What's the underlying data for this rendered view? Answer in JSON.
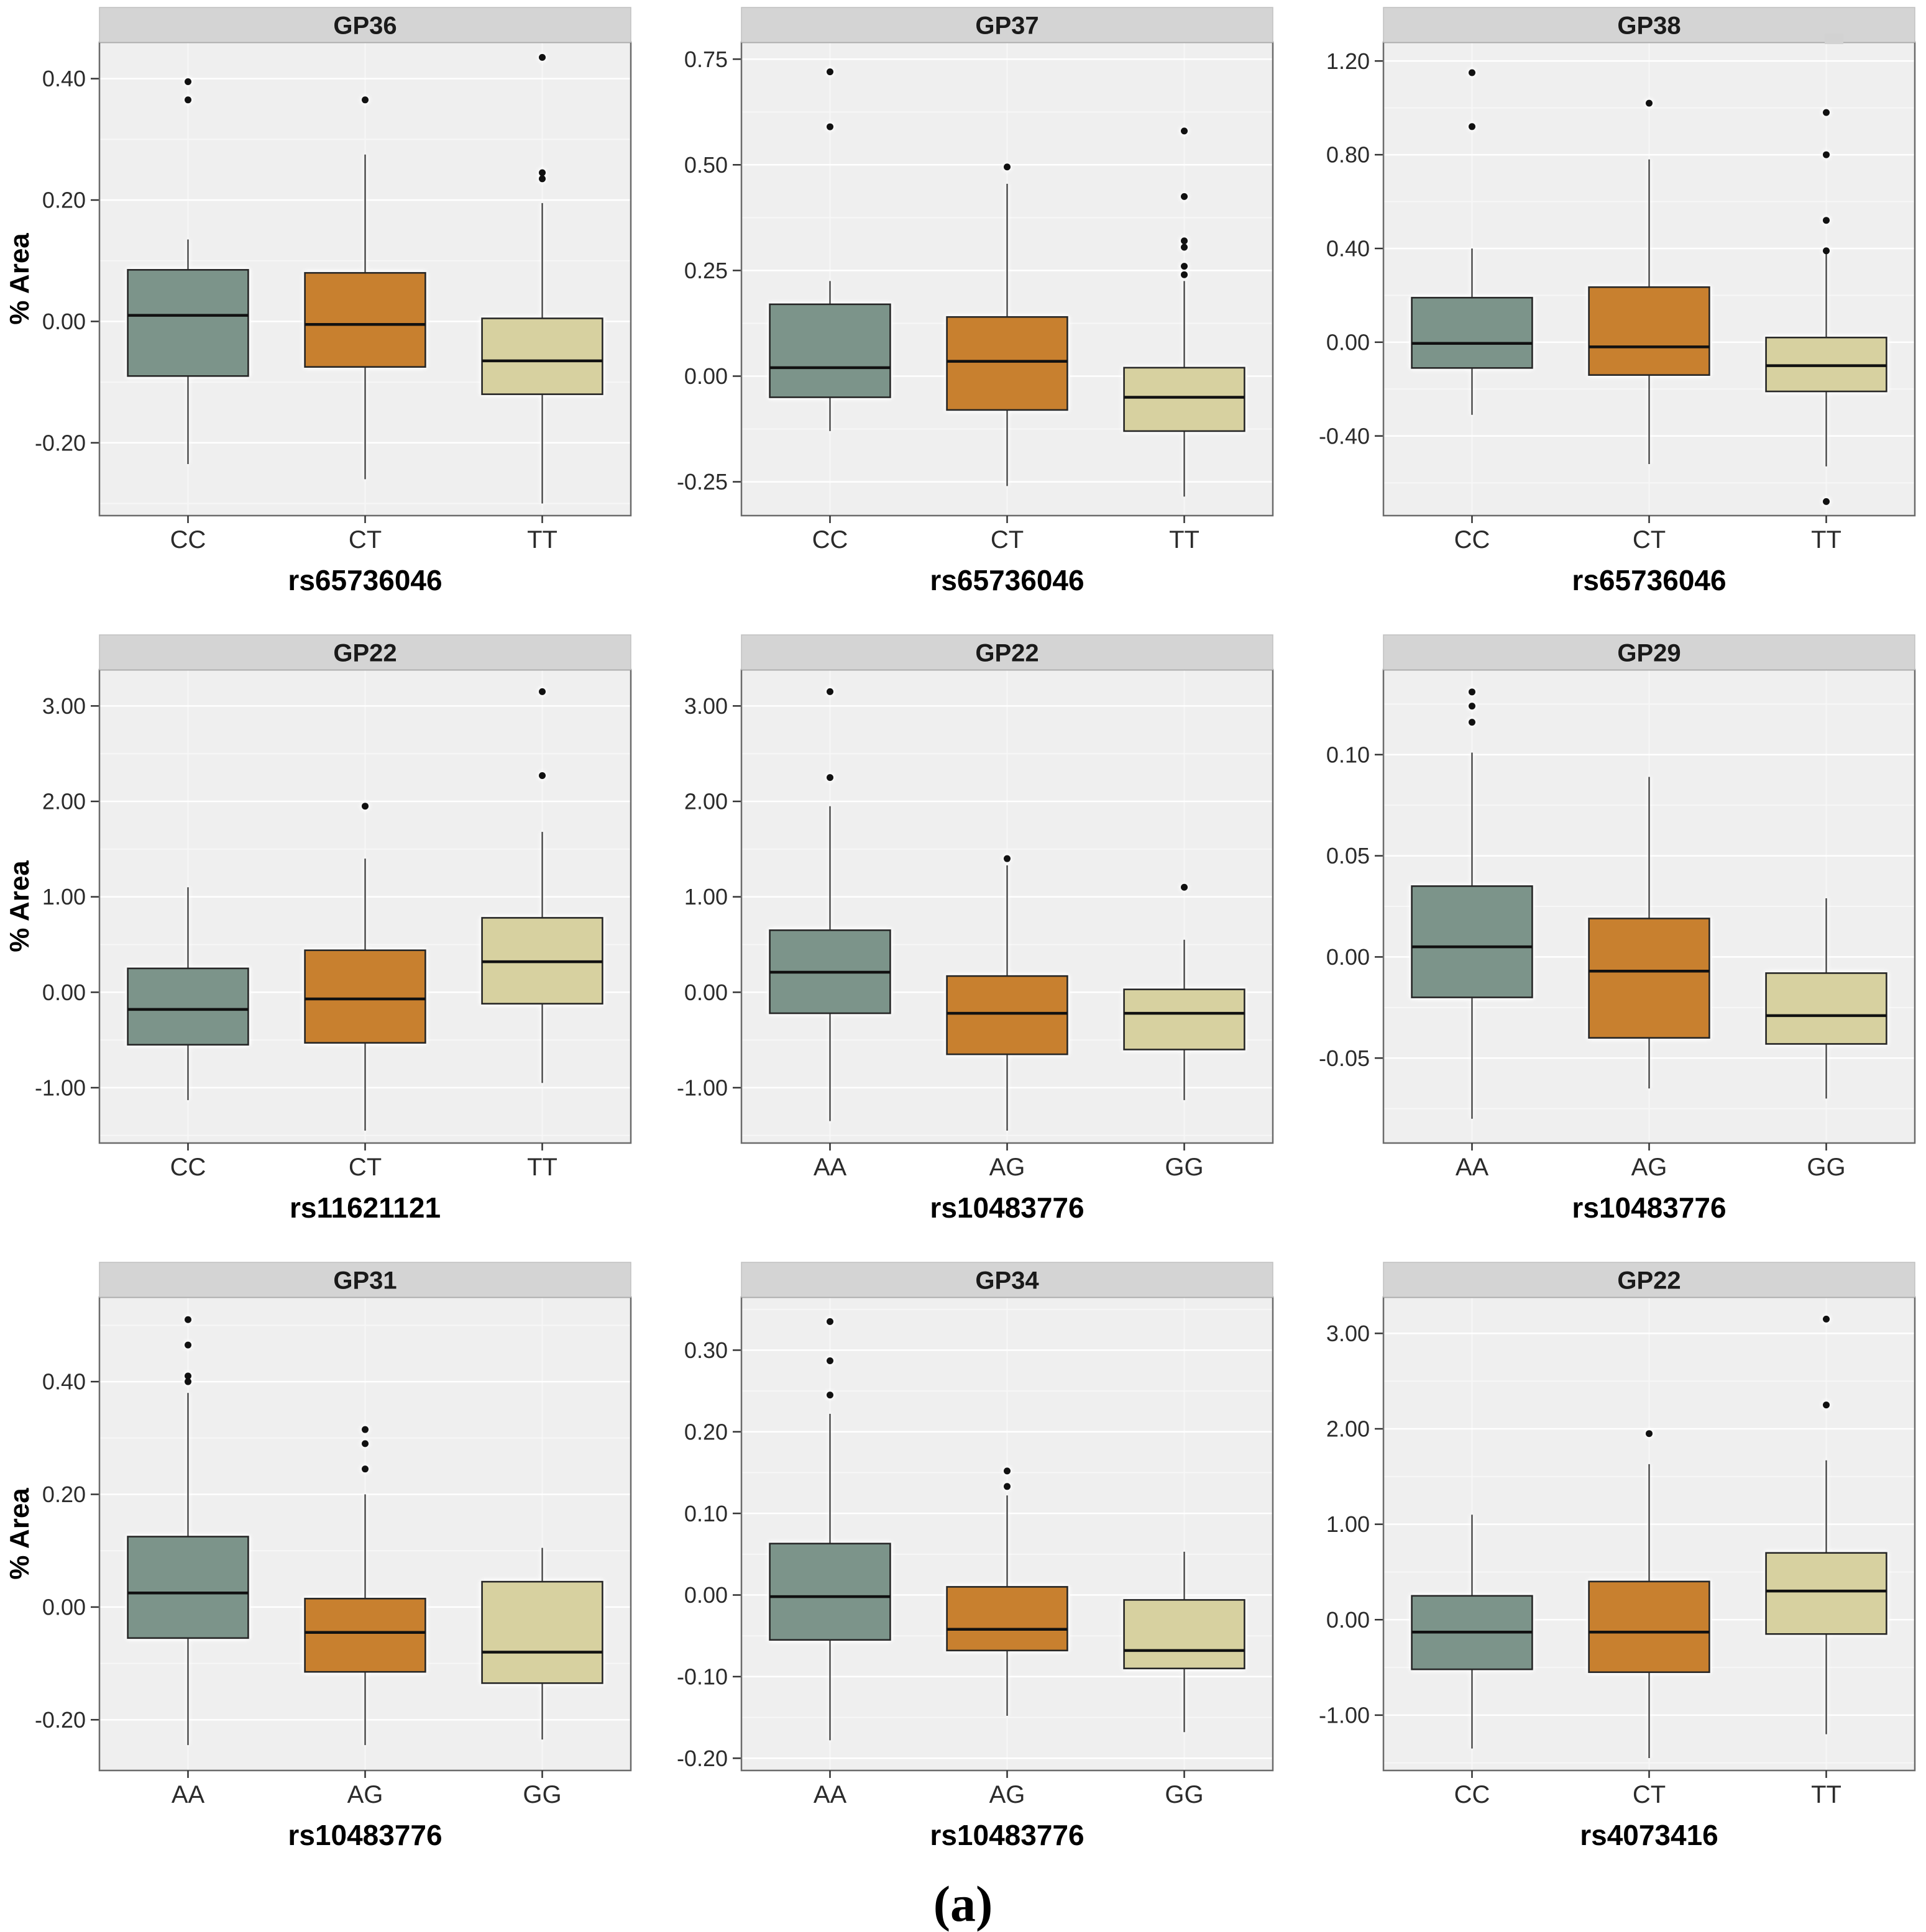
{
  "caption": "(a)",
  "ylabel": "% Area",
  "colors": {
    "box_fills": [
      "#7C948A",
      "#C8802F",
      "#D7D1A0"
    ],
    "box_stroke": "#262626",
    "median": "#111111",
    "whisker": "#3a3a3a",
    "outlier": "#111111",
    "strip_bg": "#d4d4d4",
    "strip_border": "#c0c0c0",
    "strip_text": "#1a1a1a",
    "plot_bg": "#efefef",
    "grid_major": "#ffffff",
    "grid_minor": "#f7f7f7",
    "panel_border": "#6b6b6b",
    "tick_text": "#2b2b2b",
    "axis_title": "#000000"
  },
  "chart_data": [
    {
      "type": "box",
      "title": "GP36",
      "xlabel": "rs65736046",
      "ylabel": "% Area",
      "categories": [
        "CC",
        "CT",
        "TT"
      ],
      "y_ticks": [
        0.4,
        0.2,
        0.0,
        -0.2
      ],
      "y_tick_labels": [
        "0.40",
        "0.20",
        "0.00",
        "-0.20"
      ],
      "ylim": [
        -0.32,
        0.46
      ],
      "boxes": [
        {
          "category": "CC",
          "whisker_low": -0.235,
          "q1": -0.09,
          "median": 0.01,
          "q3": 0.085,
          "whisker_high": 0.135,
          "outliers": [
            0.395,
            0.365
          ]
        },
        {
          "category": "CT",
          "whisker_low": -0.26,
          "q1": -0.075,
          "median": -0.005,
          "q3": 0.08,
          "whisker_high": 0.275,
          "outliers": [
            0.365
          ]
        },
        {
          "category": "TT",
          "whisker_low": -0.3,
          "q1": -0.12,
          "median": -0.065,
          "q3": 0.005,
          "whisker_high": 0.195,
          "outliers": [
            0.435,
            0.245,
            0.235
          ]
        }
      ]
    },
    {
      "type": "box",
      "title": "GP37",
      "xlabel": "rs65736046",
      "ylabel": "",
      "categories": [
        "CC",
        "CT",
        "TT"
      ],
      "y_ticks": [
        0.75,
        0.5,
        0.25,
        0.0,
        -0.25
      ],
      "y_tick_labels": [
        "0.75",
        "0.50",
        "0.25",
        "0.00",
        "-0.25"
      ],
      "ylim": [
        -0.33,
        0.79
      ],
      "boxes": [
        {
          "category": "CC",
          "whisker_low": -0.13,
          "q1": -0.05,
          "median": 0.02,
          "q3": 0.17,
          "whisker_high": 0.225,
          "outliers": [
            0.72,
            0.59
          ]
        },
        {
          "category": "CT",
          "whisker_low": -0.26,
          "q1": -0.08,
          "median": 0.035,
          "q3": 0.14,
          "whisker_high": 0.455,
          "outliers": [
            0.495
          ]
        },
        {
          "category": "TT",
          "whisker_low": -0.285,
          "q1": -0.13,
          "median": -0.05,
          "q3": 0.02,
          "whisker_high": 0.225,
          "outliers": [
            0.58,
            0.425,
            0.32,
            0.305,
            0.26,
            0.24
          ]
        }
      ]
    },
    {
      "type": "box",
      "title": "GP38",
      "xlabel": "rs65736046",
      "ylabel": "",
      "categories": [
        "CC",
        "CT",
        "TT"
      ],
      "y_ticks": [
        1.2,
        0.8,
        0.4,
        0.0,
        -0.4
      ],
      "y_tick_labels": [
        "1.20",
        "0.80",
        "0.40",
        "0.00",
        "-0.40"
      ],
      "ylim": [
        -0.74,
        1.28
      ],
      "boxes": [
        {
          "category": "CC",
          "whisker_low": -0.31,
          "q1": -0.11,
          "median": -0.005,
          "q3": 0.19,
          "whisker_high": 0.4,
          "outliers": [
            1.15,
            0.92
          ]
        },
        {
          "category": "CT",
          "whisker_low": -0.52,
          "q1": -0.14,
          "median": -0.02,
          "q3": 0.235,
          "whisker_high": 0.78,
          "outliers": [
            1.02
          ]
        },
        {
          "category": "TT",
          "whisker_low": -0.53,
          "q1": -0.21,
          "median": -0.1,
          "q3": 0.02,
          "whisker_high": 0.38,
          "outliers": [
            0.98,
            0.8,
            0.52,
            0.39,
            -0.68
          ]
        }
      ]
    },
    {
      "type": "box",
      "title": "GP22",
      "xlabel": "rs11621121",
      "ylabel": "% Area",
      "categories": [
        "CC",
        "CT",
        "TT"
      ],
      "y_ticks": [
        3.0,
        2.0,
        1.0,
        0.0,
        -1.0
      ],
      "y_tick_labels": [
        "3.00",
        "2.00",
        "1.00",
        "0.00",
        "-1.00"
      ],
      "ylim": [
        -1.58,
        3.38
      ],
      "boxes": [
        {
          "category": "CC",
          "whisker_low": -1.13,
          "q1": -0.55,
          "median": -0.18,
          "q3": 0.25,
          "whisker_high": 1.1,
          "outliers": []
        },
        {
          "category": "CT",
          "whisker_low": -1.45,
          "q1": -0.53,
          "median": -0.07,
          "q3": 0.44,
          "whisker_high": 1.4,
          "outliers": [
            1.95
          ]
        },
        {
          "category": "TT",
          "whisker_low": -0.95,
          "q1": -0.12,
          "median": 0.32,
          "q3": 0.78,
          "whisker_high": 1.68,
          "outliers": [
            3.15,
            2.27
          ]
        }
      ]
    },
    {
      "type": "box",
      "title": "GP22",
      "xlabel": "rs10483776",
      "ylabel": "",
      "categories": [
        "AA",
        "AG",
        "GG"
      ],
      "y_ticks": [
        3.0,
        2.0,
        1.0,
        0.0,
        -1.0
      ],
      "y_tick_labels": [
        "3.00",
        "2.00",
        "1.00",
        "0.00",
        "-1.00"
      ],
      "ylim": [
        -1.58,
        3.38
      ],
      "boxes": [
        {
          "category": "AA",
          "whisker_low": -1.35,
          "q1": -0.22,
          "median": 0.21,
          "q3": 0.65,
          "whisker_high": 1.95,
          "outliers": [
            3.15,
            2.25
          ]
        },
        {
          "category": "AG",
          "whisker_low": -1.45,
          "q1": -0.65,
          "median": -0.22,
          "q3": 0.17,
          "whisker_high": 1.33,
          "outliers": [
            1.4
          ]
        },
        {
          "category": "GG",
          "whisker_low": -1.13,
          "q1": -0.6,
          "median": -0.22,
          "q3": 0.03,
          "whisker_high": 0.55,
          "outliers": [
            1.1
          ]
        }
      ]
    },
    {
      "type": "box",
      "title": "GP29",
      "xlabel": "rs10483776",
      "ylabel": "",
      "categories": [
        "AA",
        "AG",
        "GG"
      ],
      "y_ticks": [
        0.1,
        0.05,
        0.0,
        -0.05
      ],
      "y_tick_labels": [
        "0.10",
        "0.05",
        "0.00",
        "-0.05"
      ],
      "ylim": [
        -0.092,
        0.142
      ],
      "boxes": [
        {
          "category": "AA",
          "whisker_low": -0.08,
          "q1": -0.02,
          "median": 0.005,
          "q3": 0.035,
          "whisker_high": 0.101,
          "outliers": [
            0.131,
            0.124,
            0.116
          ]
        },
        {
          "category": "AG",
          "whisker_low": -0.065,
          "q1": -0.04,
          "median": -0.007,
          "q3": 0.019,
          "whisker_high": 0.089,
          "outliers": []
        },
        {
          "category": "GG",
          "whisker_low": -0.07,
          "q1": -0.043,
          "median": -0.029,
          "q3": -0.008,
          "whisker_high": 0.029,
          "outliers": []
        }
      ]
    },
    {
      "type": "box",
      "title": "GP31",
      "xlabel": "rs10483776",
      "ylabel": "% Area",
      "categories": [
        "AA",
        "AG",
        "GG"
      ],
      "y_ticks": [
        0.4,
        0.2,
        0.0,
        -0.2
      ],
      "y_tick_labels": [
        "0.40",
        "0.20",
        "0.00",
        "-0.20"
      ],
      "ylim": [
        -0.29,
        0.55
      ],
      "boxes": [
        {
          "category": "AA",
          "whisker_low": -0.245,
          "q1": -0.055,
          "median": 0.025,
          "q3": 0.125,
          "whisker_high": 0.38,
          "outliers": [
            0.51,
            0.465,
            0.41,
            0.4
          ]
        },
        {
          "category": "AG",
          "whisker_low": -0.245,
          "q1": -0.115,
          "median": -0.045,
          "q3": 0.015,
          "whisker_high": 0.2,
          "outliers": [
            0.315,
            0.29,
            0.245
          ]
        },
        {
          "category": "GG",
          "whisker_low": -0.235,
          "q1": -0.135,
          "median": -0.08,
          "q3": 0.045,
          "whisker_high": 0.105,
          "outliers": []
        }
      ]
    },
    {
      "type": "box",
      "title": "GP34",
      "xlabel": "rs10483776",
      "ylabel": "",
      "categories": [
        "AA",
        "AG",
        "GG"
      ],
      "y_ticks": [
        0.3,
        0.2,
        0.1,
        0.0,
        -0.1,
        -0.2
      ],
      "y_tick_labels": [
        "0.30",
        "0.20",
        "0.10",
        "0.00",
        "-0.10",
        "-0.20"
      ],
      "ylim": [
        -0.215,
        0.365
      ],
      "boxes": [
        {
          "category": "AA",
          "whisker_low": -0.178,
          "q1": -0.055,
          "median": -0.002,
          "q3": 0.063,
          "whisker_high": 0.222,
          "outliers": [
            0.335,
            0.287,
            0.245
          ]
        },
        {
          "category": "AG",
          "whisker_low": -0.148,
          "q1": -0.068,
          "median": -0.042,
          "q3": 0.01,
          "whisker_high": 0.122,
          "outliers": [
            0.152,
            0.133
          ]
        },
        {
          "category": "GG",
          "whisker_low": -0.168,
          "q1": -0.09,
          "median": -0.068,
          "q3": -0.006,
          "whisker_high": 0.053,
          "outliers": []
        }
      ]
    },
    {
      "type": "box",
      "title": "GP22",
      "xlabel": "rs4073416",
      "ylabel": "",
      "categories": [
        "CC",
        "CT",
        "TT"
      ],
      "y_ticks": [
        3.0,
        2.0,
        1.0,
        0.0,
        -1.0
      ],
      "y_tick_labels": [
        "3.00",
        "2.00",
        "1.00",
        "0.00",
        "-1.00"
      ],
      "ylim": [
        -1.58,
        3.38
      ],
      "boxes": [
        {
          "category": "CC",
          "whisker_low": -1.35,
          "q1": -0.52,
          "median": -0.13,
          "q3": 0.25,
          "whisker_high": 1.1,
          "outliers": []
        },
        {
          "category": "CT",
          "whisker_low": -1.45,
          "q1": -0.55,
          "median": -0.13,
          "q3": 0.4,
          "whisker_high": 1.63,
          "outliers": [
            1.95
          ]
        },
        {
          "category": "TT",
          "whisker_low": -1.2,
          "q1": -0.15,
          "median": 0.3,
          "q3": 0.7,
          "whisker_high": 1.67,
          "outliers": [
            3.15,
            2.25
          ]
        }
      ]
    }
  ]
}
